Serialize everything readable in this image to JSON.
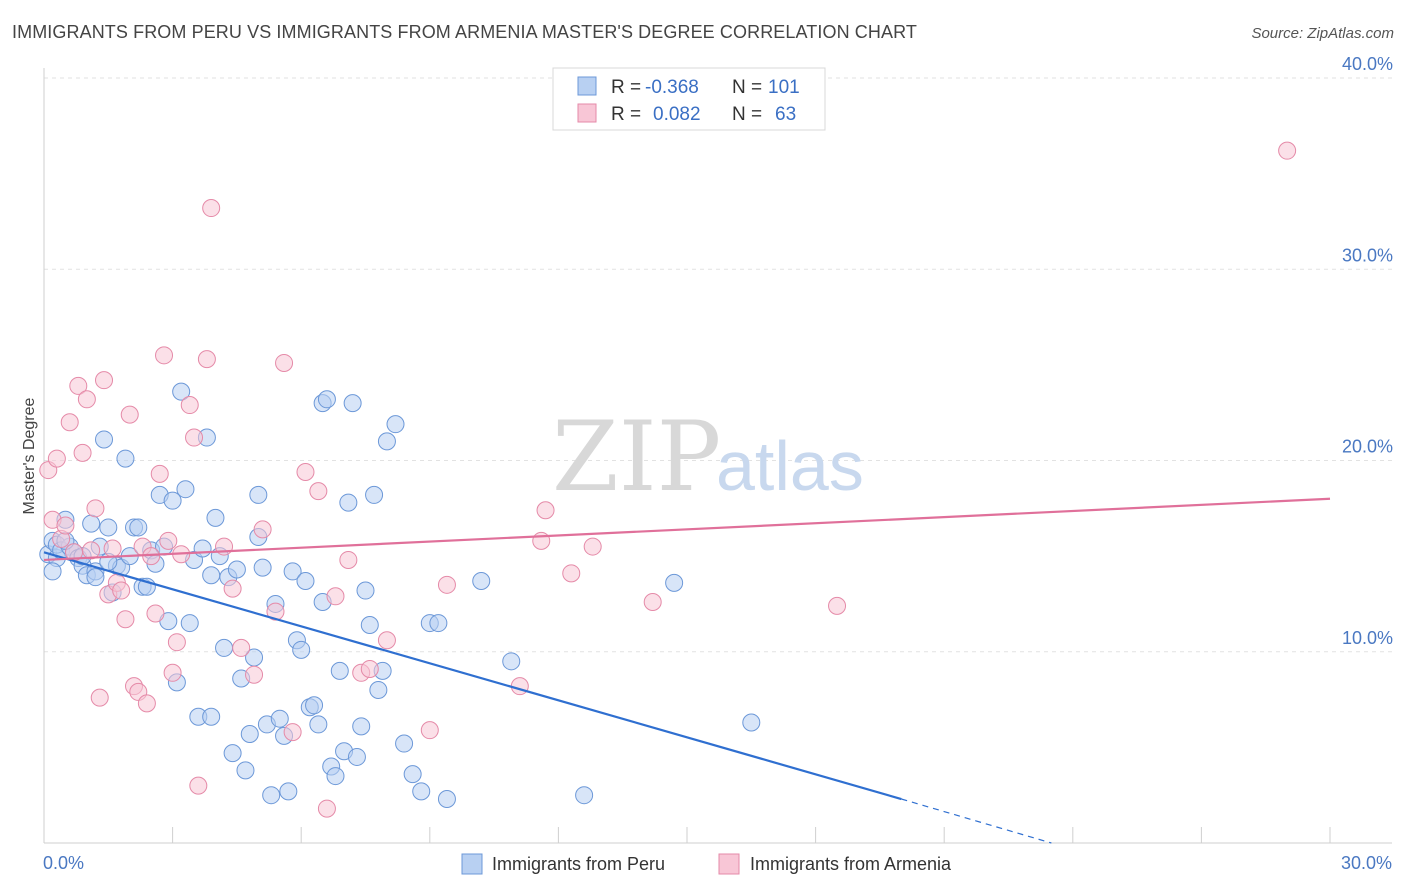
{
  "title": "IMMIGRANTS FROM PERU VS IMMIGRANTS FROM ARMENIA MASTER'S DEGREE CORRELATION CHART",
  "source": "Source: ZipAtlas.com",
  "watermark": {
    "zip": "ZIP",
    "atlas": "atlas"
  },
  "colors": {
    "peru_fill": "#b8d0f2",
    "peru_stroke": "#6c98d8",
    "peru_line": "#2f6fd0",
    "armenia_fill": "#f8c6d6",
    "armenia_stroke": "#e58aa8",
    "armenia_line": "#e0709a",
    "grid": "#e2e2e2",
    "tick_text": "#4a78c2"
  },
  "legend": {
    "rows": [
      {
        "r_label": "R =",
        "r_value": "-0.368",
        "n_label": "N =",
        "n_value": "101"
      },
      {
        "r_label": "R =",
        "r_value": "0.082",
        "n_label": "N =",
        "n_value": "63"
      }
    ]
  },
  "chart_data": {
    "type": "scatter",
    "title": "IMMIGRANTS FROM PERU VS IMMIGRANTS FROM ARMENIA MASTER'S DEGREE CORRELATION CHART",
    "xlabel": "",
    "ylabel": "Master's Degree",
    "xlim": [
      0,
      30
    ],
    "ylim": [
      0,
      40
    ],
    "x_ticks": [
      "0.0%",
      "30.0%"
    ],
    "y_ticks": [
      {
        "value": 10,
        "label": "10.0%"
      },
      {
        "value": 20,
        "label": "20.0%"
      },
      {
        "value": 30,
        "label": "30.0%"
      },
      {
        "value": 40,
        "label": "40.0%"
      }
    ],
    "grid": true,
    "legend_position": "top-center",
    "series": [
      {
        "name": "Immigrants from Peru",
        "trend": {
          "x": [
            0,
            20
          ],
          "y": [
            15.2,
            2.3
          ],
          "dashed_to": [
            23.5,
            0
          ]
        },
        "points": [
          [
            0.1,
            15.1
          ],
          [
            0.2,
            15.8
          ],
          [
            0.3,
            14.9
          ],
          [
            0.3,
            15.6
          ],
          [
            0.4,
            15.3
          ],
          [
            0.5,
            16.9
          ],
          [
            0.6,
            15.5
          ],
          [
            0.7,
            15.2
          ],
          [
            0.8,
            14.9
          ],
          [
            0.9,
            14.5
          ],
          [
            1.0,
            14.0
          ],
          [
            1.1,
            16.7
          ],
          [
            1.2,
            14.2
          ],
          [
            1.3,
            15.5
          ],
          [
            1.4,
            21.1
          ],
          [
            1.5,
            16.5
          ],
          [
            1.6,
            13.1
          ],
          [
            1.7,
            14.5
          ],
          [
            1.8,
            14.4
          ],
          [
            1.9,
            20.1
          ],
          [
            2.0,
            15.0
          ],
          [
            2.1,
            16.5
          ],
          [
            2.2,
            16.5
          ],
          [
            2.3,
            13.4
          ],
          [
            2.4,
            13.4
          ],
          [
            2.5,
            15.3
          ],
          [
            2.7,
            18.2
          ],
          [
            2.8,
            15.5
          ],
          [
            2.9,
            11.6
          ],
          [
            3.0,
            17.9
          ],
          [
            3.1,
            8.4
          ],
          [
            3.2,
            23.6
          ],
          [
            3.3,
            18.5
          ],
          [
            3.4,
            11.5
          ],
          [
            3.5,
            14.8
          ],
          [
            3.6,
            6.6
          ],
          [
            3.7,
            15.4
          ],
          [
            3.8,
            21.2
          ],
          [
            3.9,
            6.6
          ],
          [
            4.0,
            17.0
          ],
          [
            4.1,
            15.0
          ],
          [
            4.2,
            10.2
          ],
          [
            4.3,
            13.9
          ],
          [
            4.4,
            4.7
          ],
          [
            4.5,
            14.3
          ],
          [
            4.6,
            8.6
          ],
          [
            4.7,
            3.8
          ],
          [
            4.8,
            5.7
          ],
          [
            4.9,
            9.7
          ],
          [
            5.0,
            18.2
          ],
          [
            5.1,
            14.4
          ],
          [
            5.2,
            6.2
          ],
          [
            5.3,
            2.5
          ],
          [
            5.4,
            12.5
          ],
          [
            5.5,
            6.5
          ],
          [
            5.6,
            5.6
          ],
          [
            5.7,
            2.7
          ],
          [
            5.8,
            14.2
          ],
          [
            5.9,
            10.6
          ],
          [
            6.0,
            10.1
          ],
          [
            6.1,
            13.7
          ],
          [
            6.2,
            7.1
          ],
          [
            6.3,
            7.2
          ],
          [
            6.4,
            6.2
          ],
          [
            6.5,
            23.0
          ],
          [
            6.6,
            23.2
          ],
          [
            6.7,
            4.0
          ],
          [
            6.8,
            3.5
          ],
          [
            6.9,
            9.0
          ],
          [
            7.0,
            4.8
          ],
          [
            7.1,
            17.8
          ],
          [
            7.2,
            23.0
          ],
          [
            7.3,
            4.5
          ],
          [
            7.4,
            6.1
          ],
          [
            7.5,
            13.2
          ],
          [
            7.6,
            11.4
          ],
          [
            7.7,
            18.2
          ],
          [
            7.8,
            8.0
          ],
          [
            7.9,
            9.0
          ],
          [
            8.0,
            21.0
          ],
          [
            8.2,
            21.9
          ],
          [
            8.4,
            5.2
          ],
          [
            8.6,
            3.6
          ],
          [
            8.8,
            2.7
          ],
          [
            9.0,
            11.5
          ],
          [
            9.2,
            11.5
          ],
          [
            9.4,
            2.3
          ],
          [
            10.2,
            13.7
          ],
          [
            10.9,
            9.5
          ],
          [
            12.6,
            2.5
          ],
          [
            14.7,
            13.6
          ],
          [
            16.5,
            6.3
          ],
          [
            0.5,
            15.8
          ],
          [
            0.9,
            15.0
          ],
          [
            1.5,
            14.7
          ],
          [
            2.6,
            14.6
          ],
          [
            3.9,
            14.0
          ],
          [
            5.0,
            16.0
          ],
          [
            6.5,
            12.6
          ],
          [
            1.2,
            13.9
          ],
          [
            0.2,
            14.2
          ]
        ]
      },
      {
        "name": "Immigrants from Armenia",
        "trend": {
          "x": [
            0,
            30
          ],
          "y": [
            14.8,
            18.0
          ]
        },
        "points": [
          [
            0.1,
            19.5
          ],
          [
            0.2,
            16.9
          ],
          [
            0.3,
            20.1
          ],
          [
            0.4,
            15.9
          ],
          [
            0.5,
            16.6
          ],
          [
            0.6,
            22.0
          ],
          [
            0.7,
            15.2
          ],
          [
            0.8,
            23.9
          ],
          [
            0.9,
            20.4
          ],
          [
            1.0,
            23.2
          ],
          [
            1.1,
            15.3
          ],
          [
            1.2,
            17.5
          ],
          [
            1.3,
            7.6
          ],
          [
            1.4,
            24.2
          ],
          [
            1.5,
            13.0
          ],
          [
            1.6,
            15.4
          ],
          [
            1.7,
            13.6
          ],
          [
            1.8,
            13.2
          ],
          [
            1.9,
            11.7
          ],
          [
            2.0,
            22.4
          ],
          [
            2.1,
            8.2
          ],
          [
            2.2,
            7.9
          ],
          [
            2.3,
            15.5
          ],
          [
            2.4,
            7.3
          ],
          [
            2.5,
            15.0
          ],
          [
            2.6,
            12.0
          ],
          [
            2.7,
            19.3
          ],
          [
            2.8,
            25.5
          ],
          [
            2.9,
            15.8
          ],
          [
            3.0,
            8.9
          ],
          [
            3.1,
            10.5
          ],
          [
            3.2,
            15.1
          ],
          [
            3.4,
            22.9
          ],
          [
            3.5,
            21.2
          ],
          [
            3.6,
            3.0
          ],
          [
            3.8,
            25.3
          ],
          [
            3.9,
            33.2
          ],
          [
            4.2,
            15.5
          ],
          [
            4.4,
            13.3
          ],
          [
            4.6,
            10.2
          ],
          [
            4.9,
            8.8
          ],
          [
            5.1,
            16.4
          ],
          [
            5.4,
            12.1
          ],
          [
            5.6,
            25.1
          ],
          [
            5.8,
            5.8
          ],
          [
            6.1,
            19.4
          ],
          [
            6.4,
            18.4
          ],
          [
            6.6,
            1.8
          ],
          [
            6.8,
            12.9
          ],
          [
            7.1,
            14.8
          ],
          [
            7.4,
            8.9
          ],
          [
            7.6,
            9.1
          ],
          [
            8.0,
            10.6
          ],
          [
            9.0,
            5.9
          ],
          [
            9.4,
            13.5
          ],
          [
            11.1,
            8.2
          ],
          [
            11.6,
            15.8
          ],
          [
            11.7,
            17.4
          ],
          [
            12.3,
            14.1
          ],
          [
            12.8,
            15.5
          ],
          [
            14.2,
            12.6
          ],
          [
            18.5,
            12.4
          ],
          [
            29.0,
            36.2
          ]
        ]
      }
    ]
  },
  "axis": {
    "ylabel": "Master's Degree",
    "x_left": "0.0%",
    "x_right": "30.0%"
  },
  "bottom_legend": [
    {
      "label": "Immigrants from Peru"
    },
    {
      "label": "Immigrants from Armenia"
    }
  ]
}
